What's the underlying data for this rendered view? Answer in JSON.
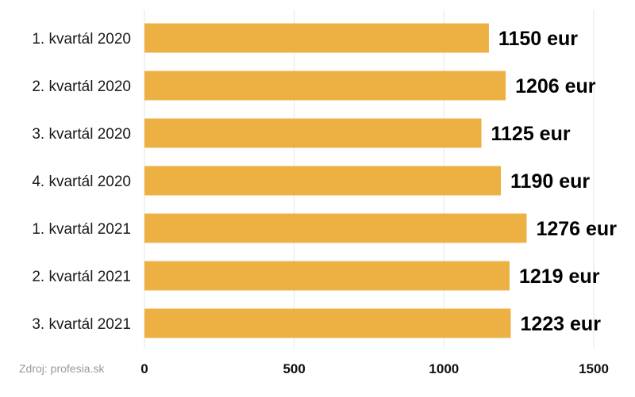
{
  "chart_data": {
    "type": "bar",
    "orientation": "horizontal",
    "categories": [
      "1. kvartál 2020",
      "2. kvartál 2020",
      "3. kvartál 2020",
      "4. kvartál 2020",
      "1. kvartál 2021",
      "2. kvartál 2021",
      "3. kvartál 2021"
    ],
    "values": [
      1150,
      1206,
      1125,
      1190,
      1276,
      1219,
      1223
    ],
    "value_labels": [
      "1150 eur",
      "1206 eur",
      "1125 eur",
      "1190 eur",
      "1276 eur",
      "1219 eur",
      "1223 eur"
    ],
    "xlim": [
      0,
      1500
    ],
    "xticks": [
      0,
      500,
      1000,
      1500
    ],
    "xtick_labels": [
      "0",
      "500",
      "1000",
      "1500"
    ],
    "grid": true,
    "bar_color": "#ECB142",
    "grid_color": "#e6e6e6"
  },
  "source_text": "Zdroj: profesia.sk"
}
